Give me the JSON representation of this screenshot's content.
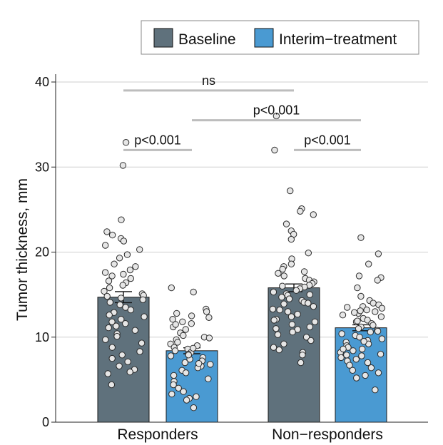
{
  "chart_data": {
    "type": "bar",
    "ylabel": "Tumor thickness, mm",
    "ylim": [
      0,
      40
    ],
    "yticks": [
      0,
      10,
      20,
      30,
      40
    ],
    "grid": true,
    "legend_position": "top-right",
    "categories": [
      "Responders",
      "Non−responders"
    ],
    "series": [
      {
        "name": "Baseline",
        "color": "#5f717c",
        "values": [
          14.7,
          15.8
        ],
        "sem": [
          0.65,
          0.45
        ],
        "points": [
          [
            30.2,
            32.9,
            22.4,
            22.0,
            21.6,
            21.3,
            20.8,
            20.3,
            19.7,
            19.3,
            18.6,
            18.3,
            17.9,
            17.6,
            17.4,
            17.2,
            16.9,
            16.6,
            16.4,
            16.1,
            15.8,
            15.4,
            15.1,
            14.9,
            14.8,
            14.6,
            14.4,
            14.1,
            13.8,
            13.5,
            13.2,
            12.9,
            12.6,
            12.4,
            12.1,
            11.8,
            11.6,
            11.3,
            11.1,
            10.8,
            10.4,
            10.1,
            9.7,
            9.3,
            8.8,
            8.3,
            7.9,
            7.5,
            7.1,
            6.6,
            6.2,
            5.9,
            5.7,
            4.4,
            23.8
          ],
          [
            36.0,
            32.0,
            27.2,
            25.1,
            24.8,
            24.4,
            23.3,
            22.5,
            22.1,
            21.5,
            19.9,
            19.2,
            18.6,
            18.3,
            18.0,
            17.7,
            17.5,
            17.2,
            16.9,
            16.7,
            16.5,
            16.3,
            16.1,
            15.9,
            15.7,
            15.5,
            15.3,
            15.1,
            14.9,
            14.7,
            14.5,
            14.3,
            14.1,
            13.9,
            13.6,
            13.3,
            13.0,
            12.7,
            12.4,
            12.1,
            11.8,
            11.5,
            11.2,
            10.9,
            10.6,
            10.3,
            10.0,
            9.6,
            9.2,
            8.8,
            8.5,
            8.2,
            7.9,
            7.0,
            15.0,
            16.0,
            14.0,
            13.2,
            12.0,
            11.0
          ]
        ]
      },
      {
        "name": "Interim−treatment",
        "color": "#4a9ad2",
        "values": [
          8.4,
          11.1
        ],
        "sem": [
          0.35,
          0.35
        ],
        "points": [
          [
            15.8,
            15.3,
            13.3,
            13.0,
            12.8,
            12.5,
            12.1,
            11.8,
            11.6,
            11.2,
            10.9,
            10.5,
            10.2,
            10.0,
            9.7,
            9.4,
            9.2,
            9.0,
            8.8,
            8.6,
            8.4,
            8.2,
            8.0,
            7.8,
            7.6,
            7.4,
            7.2,
            7.0,
            6.8,
            6.6,
            6.4,
            6.1,
            5.8,
            5.5,
            5.1,
            4.8,
            4.4,
            4.0,
            3.6,
            3.3,
            3.0,
            2.8,
            2.6,
            1.7,
            9.9,
            8.7,
            7.9,
            11.5,
            12.3,
            6.9
          ],
          [
            21.7,
            19.8,
            18.6,
            17.2,
            17.0,
            16.7,
            15.8,
            14.8,
            14.3,
            14.0,
            13.8,
            13.6,
            13.4,
            13.2,
            13.0,
            12.8,
            12.6,
            12.4,
            12.2,
            12.0,
            11.8,
            11.6,
            11.4,
            11.2,
            11.0,
            10.8,
            10.6,
            10.4,
            10.2,
            10.0,
            9.8,
            9.6,
            9.4,
            9.2,
            9.0,
            8.8,
            8.6,
            8.4,
            8.2,
            8.0,
            7.8,
            7.6,
            7.4,
            7.2,
            7.0,
            6.7,
            6.4,
            6.1,
            5.8,
            5.5,
            5.2,
            3.8,
            13.5,
            12.9,
            11.9,
            10.7,
            9.5,
            8.6,
            7.9,
            13.1
          ]
        ]
      }
    ],
    "annotations": [
      {
        "text": "ns",
        "from": [
          0,
          0
        ],
        "to": [
          1,
          0
        ],
        "y": 39.0
      },
      {
        "text": "p<0.001",
        "from": [
          0,
          1
        ],
        "to": [
          1,
          1
        ],
        "y": 35.5
      },
      {
        "text": "p<0.001",
        "from": [
          0,
          0
        ],
        "to": [
          0,
          1
        ],
        "y": 32.0
      },
      {
        "text": "p<0.001",
        "from": [
          1,
          0
        ],
        "to": [
          1,
          1
        ],
        "y": 32.0
      }
    ]
  }
}
